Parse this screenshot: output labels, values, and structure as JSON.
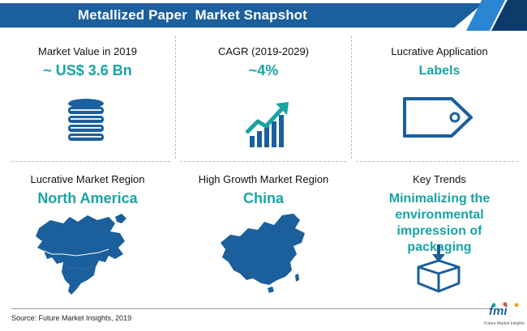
{
  "header": {
    "title": "Metallized Paper  Market Snapshot"
  },
  "cells": [
    {
      "label": "Market Value in 2019",
      "value": "~ US$ 3.6 Bn",
      "icon": "coins-stack-icon"
    },
    {
      "label": "CAGR (2019-2029)",
      "value": "~4%",
      "icon": "growth-chart-icon"
    },
    {
      "label": "Lucrative Application",
      "value": "Labels",
      "icon": "label-tag-icon"
    },
    {
      "label": "Lucrative Market Region",
      "value": "North America",
      "icon": "north-america-map-icon"
    },
    {
      "label": "High Growth Market Region",
      "value": "China",
      "icon": "china-map-icon"
    },
    {
      "label": "Key Trends",
      "value": "Minimalizing the environmental impression of packaging",
      "icon": "package-box-icon"
    }
  ],
  "footer": {
    "source": "Source: Future Market Insights, 2019",
    "logo": "fmi",
    "logo_sub": "Future Market Insights"
  },
  "colors": {
    "header": "#1b5f9c",
    "accent": "#1aa3a3",
    "icon": "#1b5f9c"
  }
}
